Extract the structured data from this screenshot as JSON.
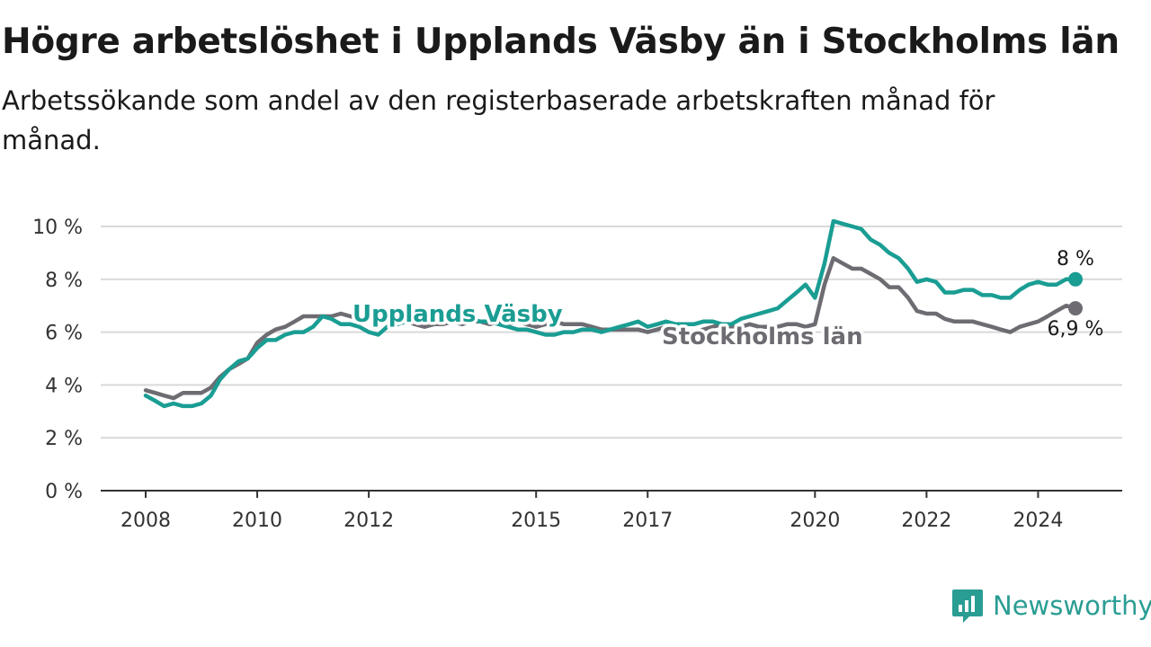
{
  "title": "Högre arbetslöshet i Upplands Väsby än i Stockholms län",
  "subtitle": "Arbetssökande som andel av den registerbaserade arbetskraften månad för månad.",
  "brand": {
    "name": "Newsworthy",
    "icon": "newsworthy-logo-icon",
    "color": "#2a9d93"
  },
  "chart_data": {
    "type": "line",
    "title": "Högre arbetslöshet i Upplands Väsby än i Stockholms län",
    "subtitle": "Arbetssökande som andel av den registerbaserade arbetskraften månad för månad.",
    "xlabel": "",
    "ylabel": "",
    "xlim": [
      2008,
      2024.67
    ],
    "ylim": [
      0,
      10
    ],
    "x_ticks": [
      {
        "value": 2008,
        "label": "2008"
      },
      {
        "value": 2010,
        "label": "2010"
      },
      {
        "value": 2012,
        "label": "2012"
      },
      {
        "value": 2015,
        "label": "2015"
      },
      {
        "value": 2017,
        "label": "2017"
      },
      {
        "value": 2020,
        "label": "2020"
      },
      {
        "value": 2022,
        "label": "2022"
      },
      {
        "value": 2024,
        "label": "2024"
      }
    ],
    "y_ticks": [
      {
        "value": 0,
        "label": "0 %"
      },
      {
        "value": 2,
        "label": "2 %"
      },
      {
        "value": 4,
        "label": "4 %"
      },
      {
        "value": 6,
        "label": "6 %"
      },
      {
        "value": 8,
        "label": "8 %"
      },
      {
        "value": 10,
        "label": "10 %"
      }
    ],
    "grid": true,
    "legend": "inline labels",
    "series": [
      {
        "name": "Stockholms län",
        "color": "#6e6c72",
        "end_label": "6,9 %",
        "points": [
          [
            2008.0,
            3.8
          ],
          [
            2008.17,
            3.7
          ],
          [
            2008.33,
            3.6
          ],
          [
            2008.5,
            3.5
          ],
          [
            2008.67,
            3.7
          ],
          [
            2008.83,
            3.7
          ],
          [
            2009.0,
            3.7
          ],
          [
            2009.17,
            3.9
          ],
          [
            2009.33,
            4.3
          ],
          [
            2009.5,
            4.6
          ],
          [
            2009.67,
            4.8
          ],
          [
            2009.83,
            5.0
          ],
          [
            2010.0,
            5.6
          ],
          [
            2010.17,
            5.9
          ],
          [
            2010.33,
            6.1
          ],
          [
            2010.5,
            6.2
          ],
          [
            2010.67,
            6.4
          ],
          [
            2010.83,
            6.6
          ],
          [
            2011.0,
            6.6
          ],
          [
            2011.17,
            6.6
          ],
          [
            2011.33,
            6.6
          ],
          [
            2011.5,
            6.7
          ],
          [
            2011.67,
            6.6
          ],
          [
            2011.83,
            6.5
          ],
          [
            2012.0,
            6.6
          ],
          [
            2012.17,
            6.5
          ],
          [
            2012.33,
            6.4
          ],
          [
            2012.5,
            6.3
          ],
          [
            2012.67,
            6.4
          ],
          [
            2012.83,
            6.3
          ],
          [
            2013.0,
            6.2
          ],
          [
            2013.17,
            6.3
          ],
          [
            2013.33,
            6.3
          ],
          [
            2013.5,
            6.4
          ],
          [
            2013.67,
            6.3
          ],
          [
            2013.83,
            6.4
          ],
          [
            2014.0,
            6.4
          ],
          [
            2014.17,
            6.3
          ],
          [
            2014.33,
            6.4
          ],
          [
            2014.5,
            6.3
          ],
          [
            2014.67,
            6.4
          ],
          [
            2014.83,
            6.3
          ],
          [
            2015.0,
            6.2
          ],
          [
            2015.17,
            6.3
          ],
          [
            2015.33,
            6.4
          ],
          [
            2015.5,
            6.3
          ],
          [
            2015.67,
            6.3
          ],
          [
            2015.83,
            6.3
          ],
          [
            2016.0,
            6.2
          ],
          [
            2016.17,
            6.1
          ],
          [
            2016.33,
            6.1
          ],
          [
            2016.5,
            6.1
          ],
          [
            2016.67,
            6.1
          ],
          [
            2016.83,
            6.1
          ],
          [
            2017.0,
            6.0
          ],
          [
            2017.17,
            6.1
          ],
          [
            2017.33,
            6.2
          ],
          [
            2017.5,
            6.1
          ],
          [
            2017.67,
            6.1
          ],
          [
            2017.83,
            6.0
          ],
          [
            2018.0,
            6.1
          ],
          [
            2018.17,
            6.2
          ],
          [
            2018.33,
            6.3
          ],
          [
            2018.5,
            6.2
          ],
          [
            2018.67,
            6.2
          ],
          [
            2018.83,
            6.3
          ],
          [
            2019.0,
            6.2
          ],
          [
            2019.17,
            6.2
          ],
          [
            2019.33,
            6.2
          ],
          [
            2019.5,
            6.3
          ],
          [
            2019.67,
            6.3
          ],
          [
            2019.83,
            6.2
          ],
          [
            2020.0,
            6.3
          ],
          [
            2020.17,
            7.8
          ],
          [
            2020.33,
            8.8
          ],
          [
            2020.5,
            8.6
          ],
          [
            2020.67,
            8.4
          ],
          [
            2020.83,
            8.4
          ],
          [
            2021.0,
            8.2
          ],
          [
            2021.17,
            8.0
          ],
          [
            2021.33,
            7.7
          ],
          [
            2021.5,
            7.7
          ],
          [
            2021.67,
            7.3
          ],
          [
            2021.83,
            6.8
          ],
          [
            2022.0,
            6.7
          ],
          [
            2022.17,
            6.7
          ],
          [
            2022.33,
            6.5
          ],
          [
            2022.5,
            6.4
          ],
          [
            2022.67,
            6.4
          ],
          [
            2022.83,
            6.4
          ],
          [
            2023.0,
            6.3
          ],
          [
            2023.17,
            6.2
          ],
          [
            2023.33,
            6.1
          ],
          [
            2023.5,
            6.0
          ],
          [
            2023.67,
            6.2
          ],
          [
            2023.83,
            6.3
          ],
          [
            2024.0,
            6.4
          ],
          [
            2024.17,
            6.6
          ],
          [
            2024.33,
            6.8
          ],
          [
            2024.5,
            7.0
          ],
          [
            2024.67,
            6.9
          ]
        ]
      },
      {
        "name": "Upplands Väsby",
        "color": "#1a9d93",
        "end_label": "8 %",
        "points": [
          [
            2008.0,
            3.6
          ],
          [
            2008.17,
            3.4
          ],
          [
            2008.33,
            3.2
          ],
          [
            2008.5,
            3.3
          ],
          [
            2008.67,
            3.2
          ],
          [
            2008.83,
            3.2
          ],
          [
            2009.0,
            3.3
          ],
          [
            2009.17,
            3.6
          ],
          [
            2009.33,
            4.2
          ],
          [
            2009.5,
            4.6
          ],
          [
            2009.67,
            4.9
          ],
          [
            2009.83,
            5.0
          ],
          [
            2010.0,
            5.4
          ],
          [
            2010.17,
            5.7
          ],
          [
            2010.33,
            5.7
          ],
          [
            2010.5,
            5.9
          ],
          [
            2010.67,
            6.0
          ],
          [
            2010.83,
            6.0
          ],
          [
            2011.0,
            6.2
          ],
          [
            2011.17,
            6.6
          ],
          [
            2011.33,
            6.5
          ],
          [
            2011.5,
            6.3
          ],
          [
            2011.67,
            6.3
          ],
          [
            2011.83,
            6.2
          ],
          [
            2012.0,
            6.0
          ],
          [
            2012.17,
            5.9
          ],
          [
            2012.33,
            6.2
          ],
          [
            2012.5,
            6.3
          ],
          [
            2012.67,
            6.4
          ],
          [
            2012.83,
            6.5
          ],
          [
            2013.0,
            6.6
          ],
          [
            2013.17,
            6.7
          ],
          [
            2013.33,
            6.6
          ],
          [
            2013.5,
            6.5
          ],
          [
            2013.67,
            6.4
          ],
          [
            2013.83,
            6.5
          ],
          [
            2014.0,
            6.4
          ],
          [
            2014.17,
            6.4
          ],
          [
            2014.33,
            6.3
          ],
          [
            2014.5,
            6.2
          ],
          [
            2014.67,
            6.1
          ],
          [
            2014.83,
            6.1
          ],
          [
            2015.0,
            6.0
          ],
          [
            2015.17,
            5.9
          ],
          [
            2015.33,
            5.9
          ],
          [
            2015.5,
            6.0
          ],
          [
            2015.67,
            6.0
          ],
          [
            2015.83,
            6.1
          ],
          [
            2016.0,
            6.1
          ],
          [
            2016.17,
            6.0
          ],
          [
            2016.33,
            6.1
          ],
          [
            2016.5,
            6.2
          ],
          [
            2016.67,
            6.3
          ],
          [
            2016.83,
            6.4
          ],
          [
            2017.0,
            6.2
          ],
          [
            2017.17,
            6.3
          ],
          [
            2017.33,
            6.4
          ],
          [
            2017.5,
            6.3
          ],
          [
            2017.67,
            6.3
          ],
          [
            2017.83,
            6.3
          ],
          [
            2018.0,
            6.4
          ],
          [
            2018.17,
            6.4
          ],
          [
            2018.33,
            6.3
          ],
          [
            2018.5,
            6.3
          ],
          [
            2018.67,
            6.5
          ],
          [
            2018.83,
            6.6
          ],
          [
            2019.0,
            6.7
          ],
          [
            2019.17,
            6.8
          ],
          [
            2019.33,
            6.9
          ],
          [
            2019.5,
            7.2
          ],
          [
            2019.67,
            7.5
          ],
          [
            2019.83,
            7.8
          ],
          [
            2020.0,
            7.3
          ],
          [
            2020.17,
            8.6
          ],
          [
            2020.33,
            10.2
          ],
          [
            2020.5,
            10.1
          ],
          [
            2020.67,
            10.0
          ],
          [
            2020.83,
            9.9
          ],
          [
            2021.0,
            9.5
          ],
          [
            2021.17,
            9.3
          ],
          [
            2021.33,
            9.0
          ],
          [
            2021.5,
            8.8
          ],
          [
            2021.67,
            8.4
          ],
          [
            2021.83,
            7.9
          ],
          [
            2022.0,
            8.0
          ],
          [
            2022.17,
            7.9
          ],
          [
            2022.33,
            7.5
          ],
          [
            2022.5,
            7.5
          ],
          [
            2022.67,
            7.6
          ],
          [
            2022.83,
            7.6
          ],
          [
            2023.0,
            7.4
          ],
          [
            2023.17,
            7.4
          ],
          [
            2023.33,
            7.3
          ],
          [
            2023.5,
            7.3
          ],
          [
            2023.67,
            7.6
          ],
          [
            2023.83,
            7.8
          ],
          [
            2024.0,
            7.9
          ],
          [
            2024.17,
            7.8
          ],
          [
            2024.33,
            7.8
          ],
          [
            2024.5,
            8.0
          ],
          [
            2024.67,
            8.0
          ]
        ]
      }
    ]
  }
}
